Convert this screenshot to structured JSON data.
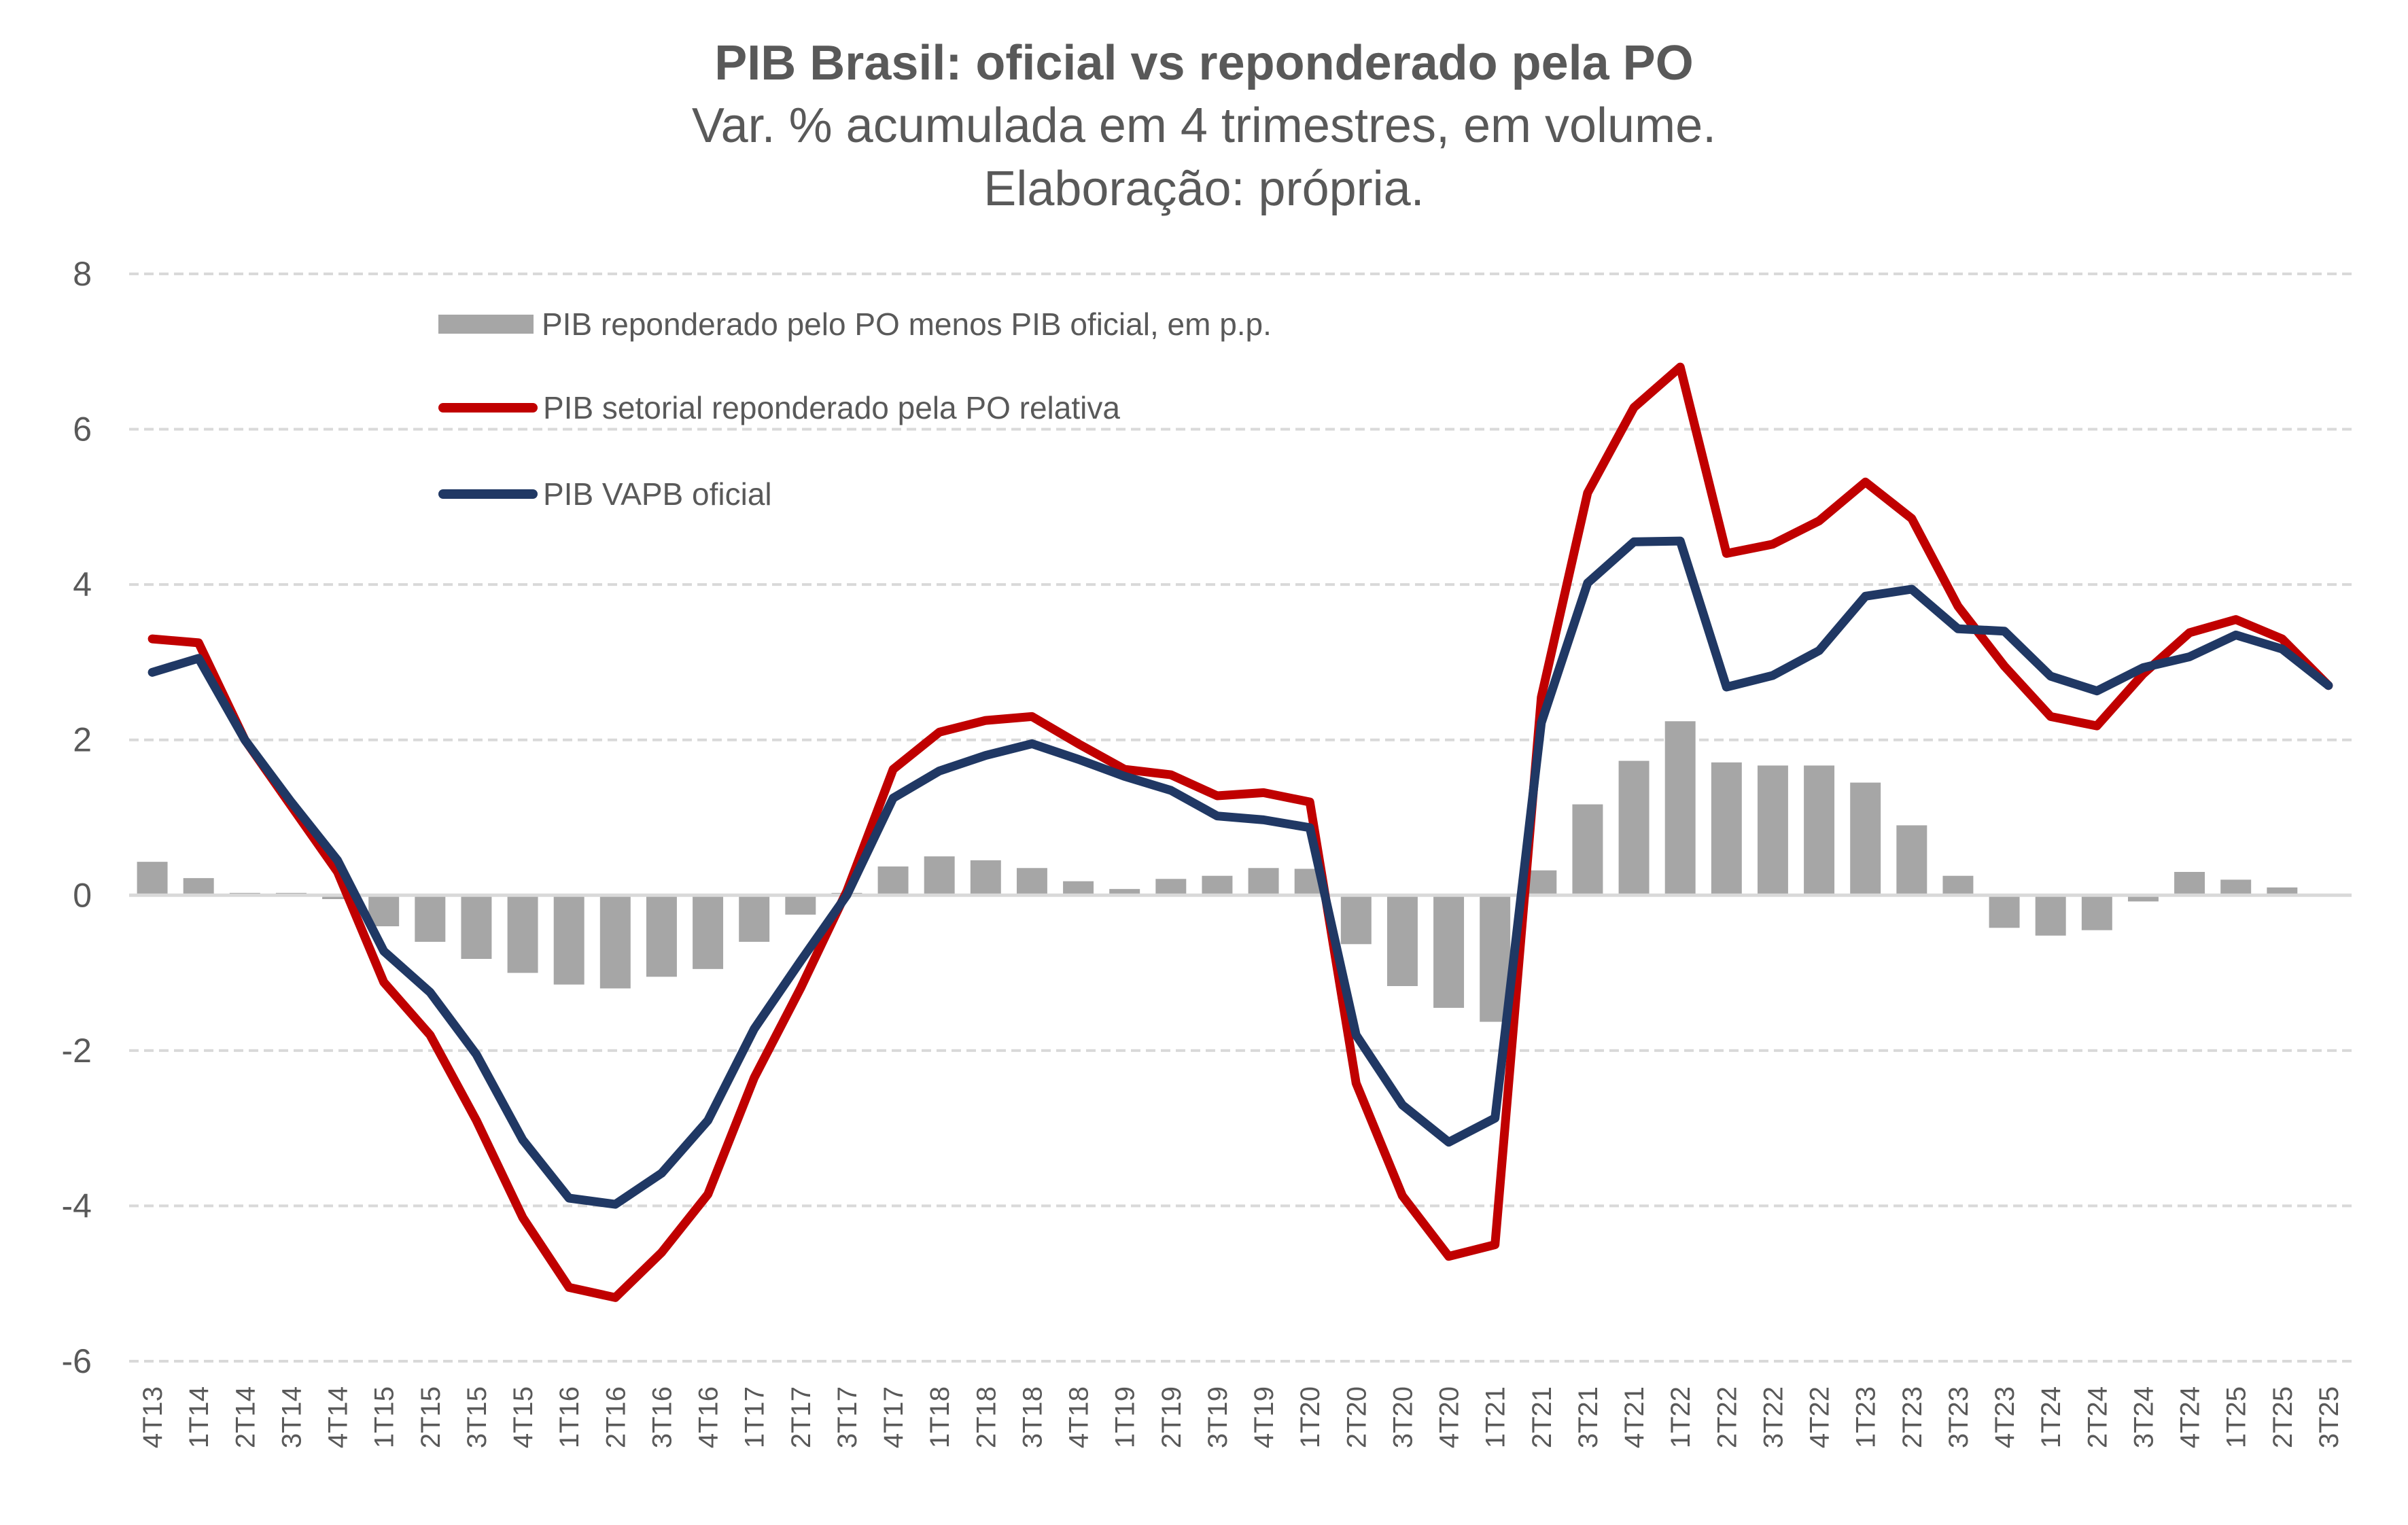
{
  "chart_data": {
    "type": "bar+line",
    "title": "PIB Brasil: oficial vs reponderado pela PO",
    "subtitle": "Var. % acumulada em 4 trimestres, em volume.",
    "source": "Elaboração: própria.",
    "xlabel": "",
    "ylabel": "",
    "ylim": [
      -6,
      8
    ],
    "yticks": [
      8,
      6,
      4,
      2,
      0,
      -2,
      -4,
      -6
    ],
    "ytick_labels": [
      "8",
      "6",
      "4",
      "2",
      "0",
      "-2",
      "-4",
      "-6"
    ],
    "grid": true,
    "legend_position": "top-left",
    "categories": [
      "4T13",
      "1T14",
      "2T14",
      "3T14",
      "4T14",
      "1T15",
      "2T15",
      "3T15",
      "4T15",
      "1T16",
      "2T16",
      "3T16",
      "4T16",
      "1T17",
      "2T17",
      "3T17",
      "4T17",
      "1T18",
      "2T18",
      "3T18",
      "4T18",
      "1T19",
      "2T19",
      "3T19",
      "4T19",
      "1T20",
      "2T20",
      "3T20",
      "4T20",
      "1T21",
      "2T21",
      "3T21",
      "4T21",
      "1T22",
      "2T22",
      "3T22",
      "4T22",
      "1T23",
      "2T23",
      "3T23",
      "4T23",
      "1T24",
      "2T24",
      "3T24",
      "4T24",
      "1T25",
      "2T25",
      "3T25"
    ],
    "series": [
      {
        "name": "PIB reponderado pelo PO menos PIB oficial, em p.p.",
        "kind": "bar",
        "color": "#a6a6a6",
        "values": [
          0.43,
          0.22,
          0.03,
          0.03,
          -0.05,
          -0.4,
          -0.6,
          -0.82,
          -1.0,
          -1.15,
          -1.2,
          -1.05,
          -0.95,
          -0.6,
          -0.25,
          0.03,
          0.37,
          0.5,
          0.45,
          0.35,
          0.18,
          0.08,
          0.21,
          0.25,
          0.35,
          0.34,
          -0.63,
          -1.17,
          -1.45,
          -1.63,
          0.32,
          1.17,
          1.73,
          2.24,
          1.71,
          1.67,
          1.67,
          1.45,
          0.9,
          0.25,
          -0.42,
          -0.52,
          -0.45,
          -0.08,
          0.3,
          0.2,
          0.1,
          0.0
        ]
      },
      {
        "name": "PIB setorial reponderado pela PO relativa",
        "kind": "line",
        "color": "#c00000",
        "values": [
          3.3,
          3.25,
          2.0,
          1.15,
          0.3,
          -1.12,
          -1.8,
          -2.9,
          -4.15,
          -5.05,
          -5.18,
          -4.6,
          -3.85,
          -2.35,
          -1.2,
          0.05,
          1.62,
          2.1,
          2.25,
          2.3,
          1.95,
          1.62,
          1.55,
          1.28,
          1.32,
          1.2,
          -2.42,
          -3.87,
          -4.65,
          -4.5,
          2.55,
          5.18,
          6.28,
          6.8,
          4.4,
          4.52,
          4.82,
          5.32,
          4.85,
          3.72,
          2.95,
          2.3,
          2.18,
          2.85,
          3.38,
          3.55,
          3.3,
          2.7
        ]
      },
      {
        "name": "PIB VAPB oficial",
        "kind": "line",
        "color": "#203864",
        "values": [
          2.87,
          3.05,
          2.0,
          1.2,
          0.45,
          -0.72,
          -1.25,
          -2.05,
          -3.15,
          -3.9,
          -3.98,
          -3.58,
          -2.9,
          -1.72,
          -0.85,
          0.0,
          1.25,
          1.6,
          1.8,
          1.95,
          1.75,
          1.53,
          1.35,
          1.02,
          0.97,
          0.87,
          -1.8,
          -2.7,
          -3.18,
          -2.87,
          2.22,
          4.02,
          4.55,
          4.56,
          2.68,
          2.83,
          3.15,
          3.85,
          3.94,
          3.43,
          3.4,
          2.82,
          2.63,
          2.93,
          3.07,
          3.35,
          3.17,
          2.7
        ]
      }
    ]
  }
}
